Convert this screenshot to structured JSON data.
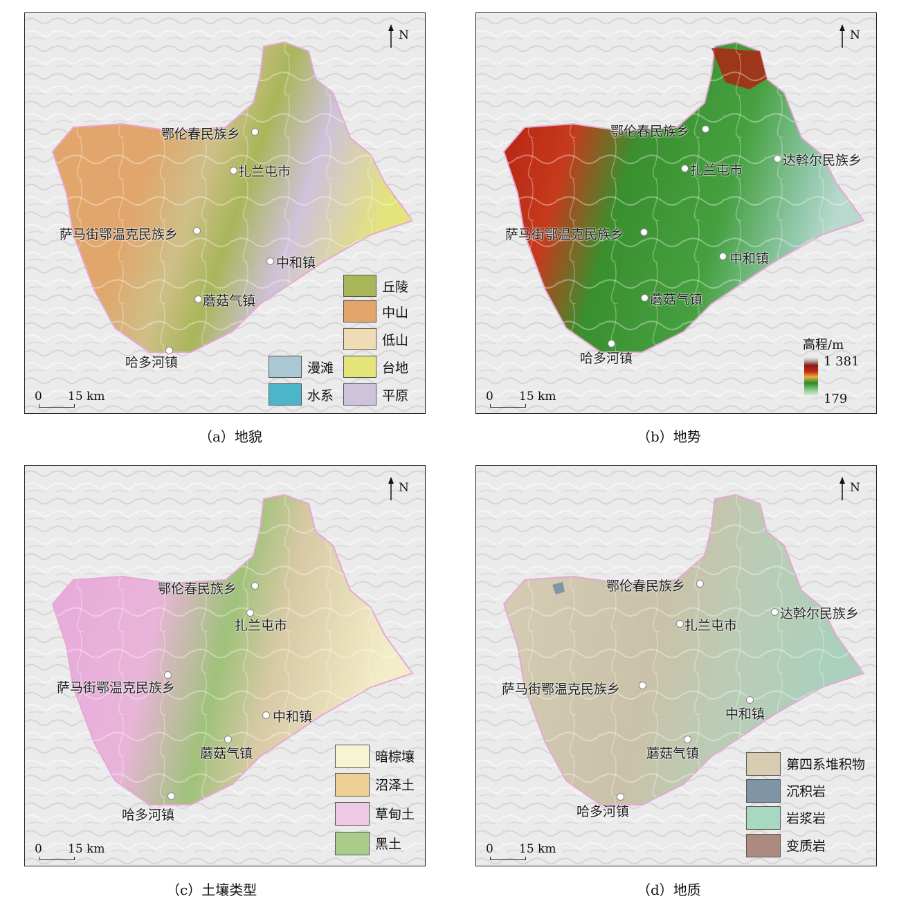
{
  "panels": {
    "a": {
      "caption": "（a）地貌",
      "north": "N",
      "scale": {
        "zero": "0",
        "distance": "15 km"
      },
      "places": {
        "elunchun": "鄂伦春民族乡",
        "zhalantun": "扎兰屯市",
        "samajie": "萨马街鄂温克民族乡",
        "zhonghe": "中和镇",
        "moguqi": "蘑菇气镇",
        "haduohe": "哈多河镇"
      },
      "legend": [
        {
          "label": "丘陵",
          "color": "#a9b65a"
        },
        {
          "label": "中山",
          "color": "#e3a56a"
        },
        {
          "label": "低山",
          "color": "#efdcb4"
        },
        {
          "label": "台地",
          "color": "#e3e47a"
        },
        {
          "label": "平原",
          "color": "#cfc2db"
        },
        {
          "label": "漫滩",
          "color": "#a9c8d4"
        },
        {
          "label": "水系",
          "color": "#4bb6c9"
        }
      ]
    },
    "b": {
      "caption": "（b）地势",
      "north": "N",
      "scale": {
        "zero": "0",
        "distance": "15 km"
      },
      "places": {
        "elunchun": "鄂伦春民族乡",
        "dawoer": "达斡尔民族乡",
        "zhalantun": "扎兰屯市",
        "samajie": "萨马街鄂温克民族乡",
        "zhonghe": "中和镇",
        "moguqi": "蘑菇气镇",
        "haduohe": "哈多河镇"
      },
      "elevation": {
        "title": "高程/m",
        "max": "1 381",
        "min": "179"
      }
    },
    "c": {
      "caption": "（c）土壤类型",
      "north": "N",
      "scale": {
        "zero": "0",
        "distance": "15 km"
      },
      "places": {
        "elunchun": "鄂伦春民族乡",
        "zhalantun": "扎兰屯市",
        "samajie": "萨马街鄂温克民族乡",
        "zhonghe": "中和镇",
        "moguqi": "蘑菇气镇",
        "haduohe": "哈多河镇"
      },
      "legend": [
        {
          "label": "暗棕壤",
          "color": "#f7f4d2"
        },
        {
          "label": "沼泽土",
          "color": "#f0cf96"
        },
        {
          "label": "草甸土",
          "color": "#efc8e3"
        },
        {
          "label": "黑土",
          "color": "#a9cc8b"
        }
      ]
    },
    "d": {
      "caption": "（d）地质",
      "north": "N",
      "scale": {
        "zero": "0",
        "distance": "15 km"
      },
      "places": {
        "elunchun": "鄂伦春民族乡",
        "dawoer": "达斡尔民族乡",
        "zhalantun": "扎兰屯市",
        "samajie": "萨马街鄂温克民族乡",
        "zhonghe": "中和镇",
        "moguqi": "蘑菇气镇",
        "haduohe": "哈多河镇"
      },
      "legend": [
        {
          "label": "第四系堆积物",
          "color": "#d8cdb3"
        },
        {
          "label": "沉积岩",
          "color": "#7f95a6"
        },
        {
          "label": "岩浆岩",
          "color": "#a9d8c1"
        },
        {
          "label": "变质岩",
          "color": "#ac8a80"
        }
      ]
    }
  }
}
